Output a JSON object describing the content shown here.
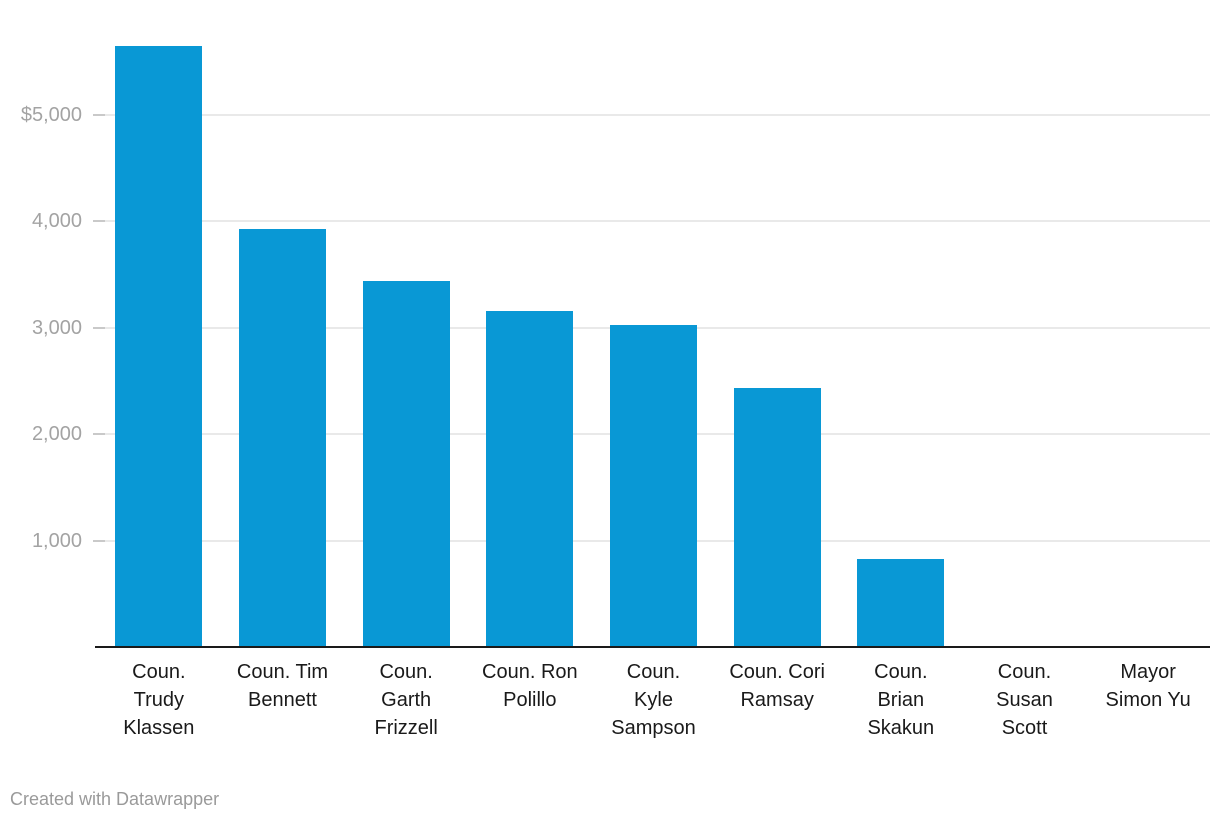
{
  "footer": {
    "credit": "Created with Datawrapper"
  },
  "colors": {
    "bar": "#0998d5",
    "axis_line": "#1a1a1a",
    "gridline": "#e9e9e9",
    "tick": "#c9c9c9",
    "y_label": "#a3a3a3",
    "x_label": "#1a1a1a",
    "footer_text": "#9a9a9a"
  },
  "chart_data": {
    "type": "bar",
    "title": "",
    "xlabel": "",
    "ylabel": "",
    "grid": "horizontal",
    "legend": "none",
    "value_prefix": "$",
    "ylim": [
      0,
      5660
    ],
    "categories": [
      "Coun. Trudy Klassen",
      "Coun. Tim Bennett",
      "Coun. Garth Frizzell",
      "Coun. Ron Polillo",
      "Coun. Kyle Sampson",
      "Coun. Cori Ramsay",
      "Coun. Brian Skakun",
      "Coun. Susan Scott",
      "Mayor Simon Yu"
    ],
    "category_lines": [
      [
        "Coun.",
        "Trudy",
        "Klassen"
      ],
      [
        "Coun. Tim",
        "Bennett"
      ],
      [
        "Coun.",
        "Garth",
        "Frizzell"
      ],
      [
        "Coun. Ron",
        "Polillo"
      ],
      [
        "Coun.",
        "Kyle",
        "Sampson"
      ],
      [
        "Coun. Cori",
        "Ramsay"
      ],
      [
        "Coun.",
        "Brian",
        "Skakun"
      ],
      [
        "Coun.",
        "Susan",
        "Scott"
      ],
      [
        "Mayor",
        "Simon Yu"
      ]
    ],
    "values": [
      5650,
      3930,
      3440,
      3160,
      3030,
      2430,
      830,
      0,
      0
    ],
    "y_ticks": [
      {
        "label": "$5,000",
        "value": 5000
      },
      {
        "label": "4,000",
        "value": 4000
      },
      {
        "label": "3,000",
        "value": 3000
      },
      {
        "label": "2,000",
        "value": 2000
      },
      {
        "label": "1,000",
        "value": 1000
      }
    ]
  }
}
